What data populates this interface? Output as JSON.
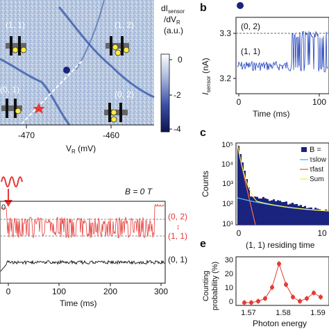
{
  "panel_b": {
    "letter": "b",
    "ylabel_main": "I",
    "ylabel_sub": "sensor",
    "ylabel_unit": " (nA)",
    "xlabel": "Time (ms)",
    "state_top": "(0, 2)",
    "state_bottom": "(1, 1)",
    "yticks": [
      "3.3",
      "3.2"
    ],
    "xticks": [
      "0",
      "100"
    ],
    "marker_color": "#1a237e"
  },
  "panel_a": {
    "colorbar_title_line1_main": "dI",
    "colorbar_title_line1_sub": "sensor",
    "colorbar_title_line2_main": "/dV",
    "colorbar_title_line2_sub": "R",
    "colorbar_title_line3": "(a.u.)",
    "colorbar_ticks": [
      "0",
      "-2",
      "-4"
    ],
    "xlabel_main": "V",
    "xlabel_sub": "R",
    "xlabel_unit": " (mV)",
    "xticks": [
      "-470",
      "-460"
    ],
    "regions": [
      "(1, 1)",
      "(1, 2)",
      "(0, 1)",
      "(0, 2)"
    ],
    "star_color": "#e53935"
  },
  "panel_c": {
    "letter": "c",
    "ylabel": "Counts",
    "xlabel": "(1, 1) residing time",
    "yticks": [
      "10⁵",
      "10⁴",
      "10³",
      "10²",
      "10¹"
    ],
    "xticks": [
      "0",
      "10"
    ],
    "legend": [
      {
        "label": "B =",
        "color": "#1a237e"
      },
      {
        "label": "τslow",
        "color": "#4fc3f7"
      },
      {
        "label": "τfast",
        "color": "#ff7043"
      },
      {
        "label": "Sum",
        "color": "#ffee58"
      }
    ]
  },
  "panel_d": {
    "field_label": "B = 0 T",
    "xlabel": "Time (ms)",
    "xticks": [
      "0",
      "100",
      "200",
      "300"
    ],
    "state_red_top": "(0, 2)",
    "state_red_bottom": "(1, 1)",
    "state_black": "(0, 1)",
    "red_color": "#e53935"
  },
  "panel_e": {
    "letter": "e",
    "ylabel_line1": "Counting",
    "ylabel_line2": "probability (%)",
    "xlabel": "Photon energy",
    "yticks": [
      "30",
      "20",
      "10",
      "0"
    ],
    "xticks": [
      "1.57",
      "1.58",
      "1.59"
    ],
    "color": "#e53935"
  }
}
